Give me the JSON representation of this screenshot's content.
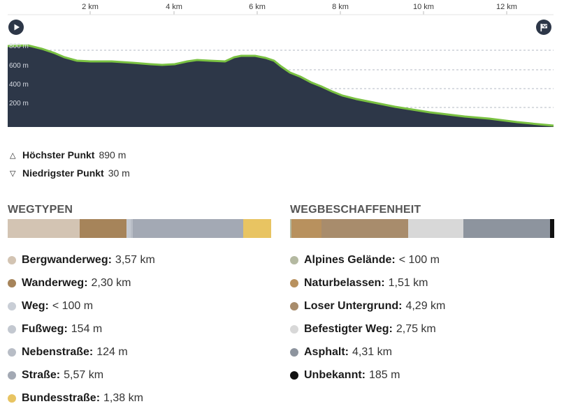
{
  "profile": {
    "km_ticks": [
      "2 km",
      "4 km",
      "6 km",
      "8 km",
      "10 km",
      "12 km"
    ],
    "elev_ticks": [
      "800 m",
      "600 m",
      "400 m",
      "200 m"
    ],
    "fill_color": "#2d3748",
    "line_color": "#7ac142",
    "icons": {
      "start": "play-icon",
      "finish": "flag-icon"
    }
  },
  "stats": {
    "highest_label": "Höchster Punkt",
    "highest_value": "890 m",
    "lowest_label": "Niedrigster Punkt",
    "lowest_value": "30 m"
  },
  "wegtypen": {
    "title": "WEGTYPEN",
    "items": [
      {
        "name": "Bergwanderweg:",
        "amount": "3,57 km",
        "color": "#d3c4b3",
        "share": 0.274
      },
      {
        "name": "Wanderweg:",
        "amount": "2,30 km",
        "color": "#a6845a",
        "share": 0.176
      },
      {
        "name": "Weg:",
        "amount": "< 100 m",
        "color": "#c9ced6",
        "share": 0.004
      },
      {
        "name": "Fußweg:",
        "amount": "154 m",
        "color": "#c3c8d0",
        "share": 0.012
      },
      {
        "name": "Nebenstraße:",
        "amount": "124 m",
        "color": "#b8bdc6",
        "share": 0.009
      },
      {
        "name": "Straße:",
        "amount": "5,57 km",
        "color": "#a3a9b4",
        "share": 0.419
      },
      {
        "name": "Bundesstraße:",
        "amount": "1,38 km",
        "color": "#e8c462",
        "share": 0.106
      }
    ]
  },
  "wegbeschaffenheit": {
    "title": "WEGBESCHAFFENHEIT",
    "items": [
      {
        "name": "Alpines Gelände:",
        "amount": "< 100 m",
        "color": "#b4b9a1",
        "share": 0.005
      },
      {
        "name": "Naturbelassen:",
        "amount": "1,51 km",
        "color": "#b8915e",
        "share": 0.115
      },
      {
        "name": "Loser Untergrund:",
        "amount": "4,29 km",
        "color": "#a88c6c",
        "share": 0.326
      },
      {
        "name": "Befestigter Weg:",
        "amount": "2,75 km",
        "color": "#d8d8d8",
        "share": 0.209
      },
      {
        "name": "Asphalt:",
        "amount": "4,31 km",
        "color": "#8d949e",
        "share": 0.329
      },
      {
        "name": "Unbekannt:",
        "amount": "185 m",
        "color": "#111111",
        "share": 0.016
      }
    ]
  }
}
